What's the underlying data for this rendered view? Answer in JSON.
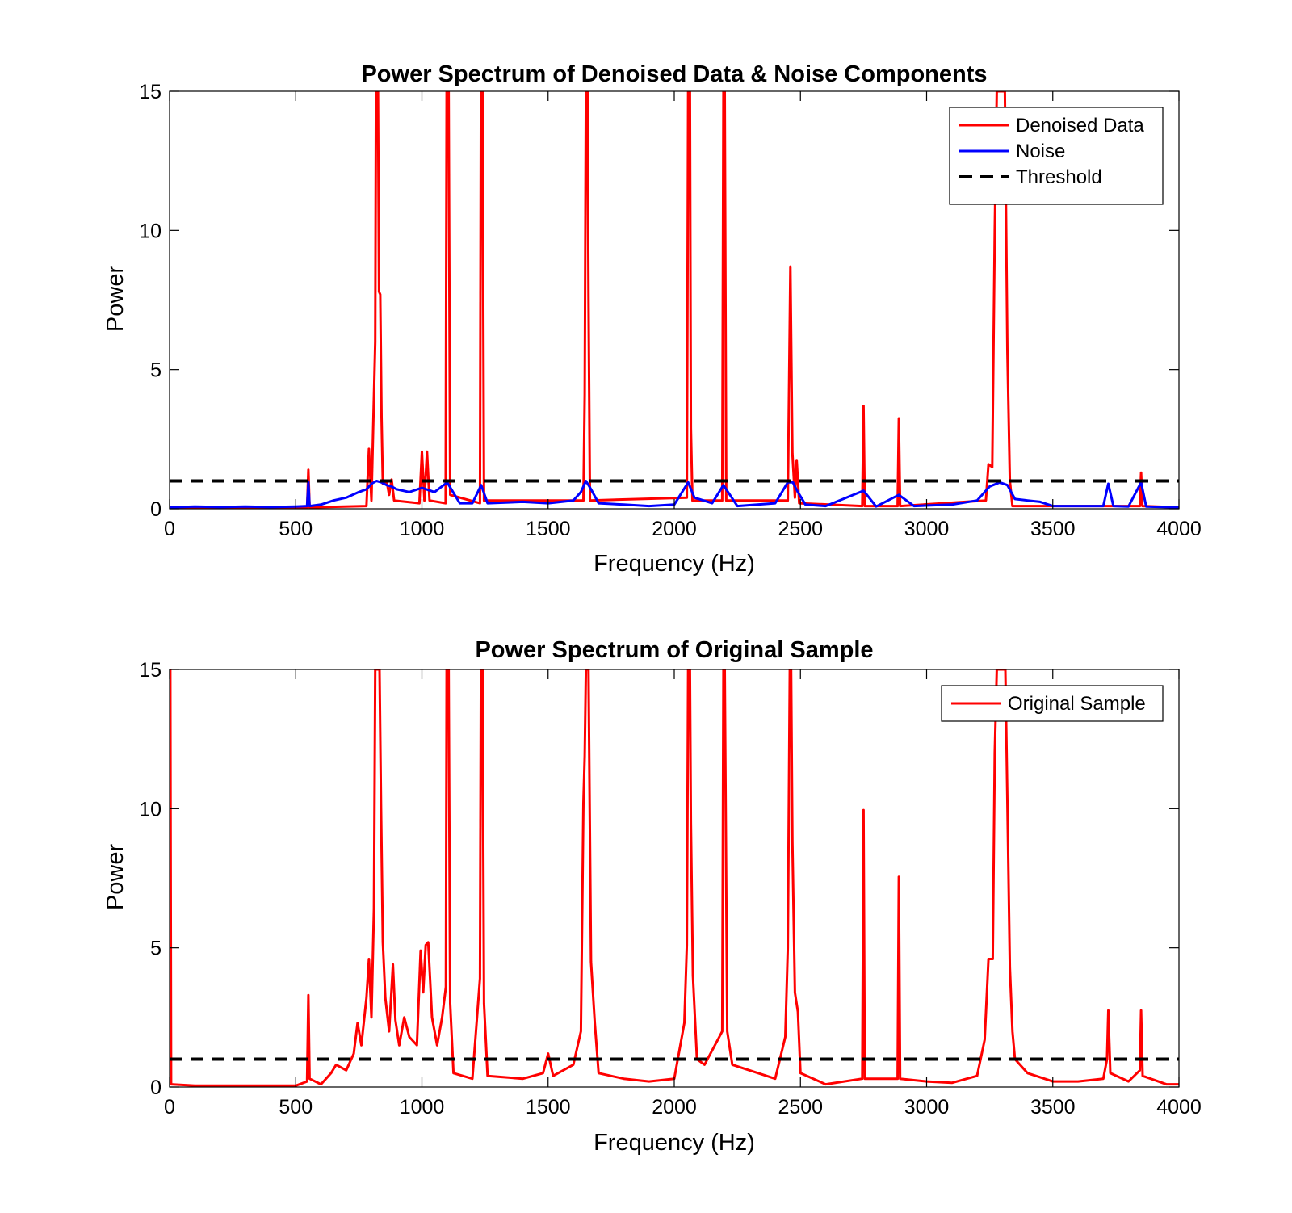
{
  "chart_data": [
    {
      "type": "line",
      "title": "Power Spectrum of Denoised Data & Noise Components",
      "xlabel": "Frequency (Hz)",
      "ylabel": "Power",
      "xlim": [
        0,
        4000
      ],
      "ylim": [
        0,
        15
      ],
      "xticks": [
        0,
        500,
        1000,
        1500,
        2000,
        2500,
        3000,
        3500,
        4000
      ],
      "yticks": [
        0,
        5,
        10,
        15
      ],
      "grid": false,
      "legend_position": "top-right",
      "series": [
        {
          "name": "Denoised Data",
          "color": "#ff0000",
          "style": "solid",
          "points": [
            [
              0,
              0.05
            ],
            [
              545,
              0.05
            ],
            [
              550,
              1.4
            ],
            [
              555,
              0.05
            ],
            [
              780,
              0.1
            ],
            [
              790,
              2.15
            ],
            [
              800,
              0.3
            ],
            [
              815,
              6
            ],
            [
              818,
              15
            ],
            [
              822,
              15
            ],
            [
              826,
              15
            ],
            [
              830,
              7.8
            ],
            [
              835,
              7.7
            ],
            [
              840,
              3.3
            ],
            [
              845,
              0.9
            ],
            [
              860,
              1.0
            ],
            [
              870,
              0.5
            ],
            [
              880,
              1.05
            ],
            [
              890,
              0.3
            ],
            [
              990,
              0.2
            ],
            [
              1000,
              2.05
            ],
            [
              1010,
              0.3
            ],
            [
              1020,
              2.05
            ],
            [
              1030,
              0.3
            ],
            [
              1094,
              0.2
            ],
            [
              1098,
              15
            ],
            [
              1106,
              15
            ],
            [
              1112,
              0.5
            ],
            [
              1230,
              0.2
            ],
            [
              1234,
              15
            ],
            [
              1240,
              15
            ],
            [
              1246,
              0.3
            ],
            [
              1640,
              0.3
            ],
            [
              1645,
              4.1
            ],
            [
              1650,
              15
            ],
            [
              1656,
              15
            ],
            [
              1660,
              7.6
            ],
            [
              1666,
              0.3
            ],
            [
              2050,
              0.4
            ],
            [
              2055,
              15
            ],
            [
              2062,
              15
            ],
            [
              2066,
              2.9
            ],
            [
              2072,
              0.3
            ],
            [
              2190,
              0.3
            ],
            [
              2195,
              15
            ],
            [
              2200,
              15
            ],
            [
              2206,
              0.3
            ],
            [
              2450,
              0.3
            ],
            [
              2460,
              8.7
            ],
            [
              2468,
              2.0
            ],
            [
              2478,
              0.4
            ],
            [
              2485,
              1.75
            ],
            [
              2495,
              0.2
            ],
            [
              2745,
              0.1
            ],
            [
              2750,
              3.7
            ],
            [
              2755,
              0.1
            ],
            [
              2885,
              0.1
            ],
            [
              2890,
              3.25
            ],
            [
              2895,
              0.1
            ],
            [
              3235,
              0.3
            ],
            [
              3245,
              1.6
            ],
            [
              3260,
              1.5
            ],
            [
              3270,
              10
            ],
            [
              3278,
              15
            ],
            [
              3300,
              15
            ],
            [
              3310,
              15
            ],
            [
              3320,
              5.7
            ],
            [
              3330,
              1.0
            ],
            [
              3340,
              0.1
            ],
            [
              3845,
              0.1
            ],
            [
              3850,
              1.3
            ],
            [
              3855,
              0.1
            ],
            [
              4000,
              0.05
            ]
          ]
        },
        {
          "name": "Noise",
          "color": "#0000ff",
          "style": "solid",
          "points": [
            [
              0,
              0.05
            ],
            [
              100,
              0.08
            ],
            [
              200,
              0.06
            ],
            [
              300,
              0.08
            ],
            [
              400,
              0.06
            ],
            [
              500,
              0.08
            ],
            [
              545,
              0.1
            ],
            [
              550,
              0.95
            ],
            [
              555,
              0.1
            ],
            [
              600,
              0.15
            ],
            [
              650,
              0.3
            ],
            [
              700,
              0.4
            ],
            [
              750,
              0.6
            ],
            [
              780,
              0.7
            ],
            [
              800,
              0.9
            ],
            [
              820,
              1.0
            ],
            [
              840,
              0.95
            ],
            [
              860,
              0.85
            ],
            [
              880,
              0.8
            ],
            [
              900,
              0.7
            ],
            [
              950,
              0.6
            ],
            [
              1000,
              0.75
            ],
            [
              1050,
              0.6
            ],
            [
              1100,
              0.95
            ],
            [
              1150,
              0.2
            ],
            [
              1200,
              0.2
            ],
            [
              1235,
              0.85
            ],
            [
              1260,
              0.2
            ],
            [
              1400,
              0.25
            ],
            [
              1500,
              0.2
            ],
            [
              1600,
              0.3
            ],
            [
              1630,
              0.6
            ],
            [
              1650,
              1.0
            ],
            [
              1670,
              0.7
            ],
            [
              1700,
              0.2
            ],
            [
              1800,
              0.15
            ],
            [
              1900,
              0.1
            ],
            [
              2000,
              0.15
            ],
            [
              2055,
              0.95
            ],
            [
              2080,
              0.4
            ],
            [
              2150,
              0.2
            ],
            [
              2195,
              0.85
            ],
            [
              2250,
              0.1
            ],
            [
              2400,
              0.2
            ],
            [
              2450,
              0.95
            ],
            [
              2470,
              0.95
            ],
            [
              2490,
              0.6
            ],
            [
              2520,
              0.15
            ],
            [
              2600,
              0.1
            ],
            [
              2750,
              0.65
            ],
            [
              2800,
              0.08
            ],
            [
              2890,
              0.5
            ],
            [
              2950,
              0.1
            ],
            [
              3100,
              0.15
            ],
            [
              3200,
              0.3
            ],
            [
              3250,
              0.8
            ],
            [
              3290,
              0.95
            ],
            [
              3320,
              0.85
            ],
            [
              3350,
              0.35
            ],
            [
              3400,
              0.3
            ],
            [
              3450,
              0.25
            ],
            [
              3500,
              0.1
            ],
            [
              3600,
              0.1
            ],
            [
              3700,
              0.1
            ],
            [
              3720,
              0.9
            ],
            [
              3740,
              0.1
            ],
            [
              3800,
              0.08
            ],
            [
              3850,
              0.95
            ],
            [
              3870,
              0.08
            ],
            [
              4000,
              0.05
            ]
          ]
        },
        {
          "name": "Threshold",
          "color": "#000000",
          "style": "dashed",
          "points": [
            [
              0,
              1
            ],
            [
              4000,
              1
            ]
          ]
        }
      ]
    },
    {
      "type": "line",
      "title": "Power Spectrum of Original Sample",
      "xlabel": "Frequency (Hz)",
      "ylabel": "Power",
      "xlim": [
        0,
        4000
      ],
      "ylim": [
        0,
        15
      ],
      "xticks": [
        0,
        500,
        1000,
        1500,
        2000,
        2500,
        3000,
        3500,
        4000
      ],
      "yticks": [
        0,
        5,
        10,
        15
      ],
      "grid": false,
      "legend_position": "top-right",
      "series": [
        {
          "name": "Original Sample",
          "color": "#ff0000",
          "style": "solid",
          "points": [
            [
              0,
              15
            ],
            [
              3,
              15
            ],
            [
              6,
              0.1
            ],
            [
              100,
              0.05
            ],
            [
              300,
              0.05
            ],
            [
              500,
              0.05
            ],
            [
              545,
              0.2
            ],
            [
              550,
              3.3
            ],
            [
              555,
              0.3
            ],
            [
              600,
              0.1
            ],
            [
              640,
              0.5
            ],
            [
              660,
              0.8
            ],
            [
              700,
              0.6
            ],
            [
              730,
              1.2
            ],
            [
              745,
              2.3
            ],
            [
              760,
              1.5
            ],
            [
              780,
              3.2
            ],
            [
              790,
              4.6
            ],
            [
              800,
              2.5
            ],
            [
              810,
              6.4
            ],
            [
              815,
              15
            ],
            [
              825,
              15
            ],
            [
              832,
              15
            ],
            [
              838,
              10
            ],
            [
              845,
              5.2
            ],
            [
              855,
              3.2
            ],
            [
              870,
              2.0
            ],
            [
              885,
              4.4
            ],
            [
              895,
              2.4
            ],
            [
              910,
              1.5
            ],
            [
              930,
              2.5
            ],
            [
              950,
              1.8
            ],
            [
              980,
              1.5
            ],
            [
              995,
              4.9
            ],
            [
              1005,
              3.4
            ],
            [
              1015,
              5.1
            ],
            [
              1025,
              5.2
            ],
            [
              1040,
              2.5
            ],
            [
              1060,
              1.5
            ],
            [
              1080,
              2.5
            ],
            [
              1095,
              3.6
            ],
            [
              1098,
              15
            ],
            [
              1106,
              15
            ],
            [
              1112,
              3.0
            ],
            [
              1125,
              0.5
            ],
            [
              1200,
              0.3
            ],
            [
              1230,
              3.9
            ],
            [
              1234,
              15
            ],
            [
              1240,
              15
            ],
            [
              1246,
              3.0
            ],
            [
              1260,
              0.4
            ],
            [
              1400,
              0.3
            ],
            [
              1480,
              0.5
            ],
            [
              1500,
              1.2
            ],
            [
              1520,
              0.4
            ],
            [
              1600,
              0.8
            ],
            [
              1630,
              2.0
            ],
            [
              1640,
              10.2
            ],
            [
              1645,
              11.9
            ],
            [
              1650,
              15
            ],
            [
              1660,
              15
            ],
            [
              1670,
              4.5
            ],
            [
              1685,
              2.3
            ],
            [
              1700,
              0.5
            ],
            [
              1800,
              0.3
            ],
            [
              1900,
              0.2
            ],
            [
              2000,
              0.3
            ],
            [
              2040,
              2.3
            ],
            [
              2050,
              5.1
            ],
            [
              2055,
              15
            ],
            [
              2062,
              15
            ],
            [
              2066,
              9.5
            ],
            [
              2074,
              4.0
            ],
            [
              2090,
              1.0
            ],
            [
              2120,
              0.8
            ],
            [
              2190,
              2.0
            ],
            [
              2195,
              15
            ],
            [
              2200,
              15
            ],
            [
              2210,
              2.0
            ],
            [
              2230,
              0.8
            ],
            [
              2400,
              0.3
            ],
            [
              2440,
              1.8
            ],
            [
              2450,
              5.0
            ],
            [
              2458,
              15
            ],
            [
              2463,
              15
            ],
            [
              2468,
              8.8
            ],
            [
              2478,
              3.4
            ],
            [
              2490,
              2.7
            ],
            [
              2500,
              0.5
            ],
            [
              2600,
              0.1
            ],
            [
              2745,
              0.3
            ],
            [
              2750,
              9.95
            ],
            [
              2755,
              0.3
            ],
            [
              2885,
              0.3
            ],
            [
              2890,
              7.55
            ],
            [
              2895,
              0.3
            ],
            [
              3000,
              0.2
            ],
            [
              3100,
              0.15
            ],
            [
              3200,
              0.4
            ],
            [
              3230,
              1.7
            ],
            [
              3245,
              4.6
            ],
            [
              3262,
              4.6
            ],
            [
              3270,
              12
            ],
            [
              3278,
              15
            ],
            [
              3300,
              15
            ],
            [
              3312,
              15
            ],
            [
              3320,
              10.3
            ],
            [
              3330,
              4.3
            ],
            [
              3340,
              2.0
            ],
            [
              3350,
              1.0
            ],
            [
              3400,
              0.5
            ],
            [
              3500,
              0.2
            ],
            [
              3600,
              0.2
            ],
            [
              3700,
              0.3
            ],
            [
              3715,
              1.0
            ],
            [
              3720,
              2.75
            ],
            [
              3728,
              0.5
            ],
            [
              3800,
              0.2
            ],
            [
              3845,
              0.6
            ],
            [
              3850,
              2.75
            ],
            [
              3856,
              0.4
            ],
            [
              3950,
              0.1
            ],
            [
              4000,
              0.1
            ]
          ]
        },
        {
          "name": "",
          "color": "#000000",
          "style": "dashed",
          "points": [
            [
              0,
              1
            ],
            [
              4000,
              1
            ]
          ]
        }
      ]
    }
  ]
}
